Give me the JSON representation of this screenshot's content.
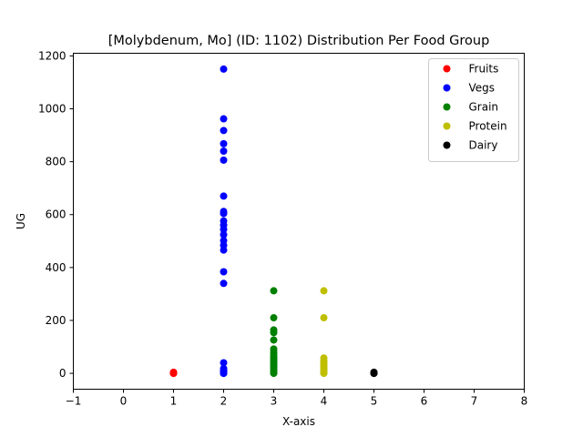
{
  "chart_data": {
    "type": "scatter",
    "title": "[Molybdenum, Mo] (ID: 1102) Distribution Per Food Group",
    "xlabel": "X-axis",
    "ylabel": "UG",
    "xlim": [
      -1,
      8
    ],
    "ylim": [
      -60,
      1210
    ],
    "xticks": [
      -1,
      0,
      1,
      2,
      3,
      4,
      5,
      6,
      7,
      8
    ],
    "yticks": [
      0,
      200,
      400,
      600,
      800,
      1000,
      1200
    ],
    "grid": false,
    "legend_position": "top-right",
    "series": [
      {
        "name": "Fruits",
        "color": "#ff0000",
        "x": [
          1,
          1,
          1,
          1,
          1,
          1
        ],
        "y": [
          0,
          0,
          1,
          2,
          3,
          4
        ]
      },
      {
        "name": "Vegs",
        "color": "#0000ff",
        "x": [
          2,
          2,
          2,
          2,
          2,
          2,
          2,
          2,
          2,
          2,
          2,
          2,
          2,
          2,
          2,
          2,
          2,
          2,
          2,
          2,
          2,
          2,
          2,
          2,
          2,
          2,
          2,
          2
        ],
        "y": [
          1150,
          962,
          918,
          868,
          840,
          806,
          670,
          612,
          604,
          576,
          560,
          544,
          524,
          502,
          484,
          466,
          384,
          340,
          40,
          18,
          12,
          8,
          5,
          3,
          2,
          1,
          0,
          0
        ]
      },
      {
        "name": "Grain",
        "color": "#008000",
        "x": [
          3,
          3,
          3,
          3,
          3,
          3,
          3,
          3,
          3,
          3,
          3,
          3,
          3,
          3,
          3,
          3,
          3,
          3,
          3,
          3,
          3
        ],
        "y": [
          312,
          210,
          164,
          154,
          126,
          92,
          82,
          74,
          64,
          58,
          52,
          46,
          40,
          34,
          28,
          22,
          16,
          10,
          5,
          2,
          0
        ]
      },
      {
        "name": "Protein",
        "color": "#bfbf00",
        "x": [
          4,
          4,
          4,
          4,
          4,
          4,
          4,
          4,
          4,
          4,
          4,
          4,
          4
        ],
        "y": [
          312,
          210,
          58,
          48,
          40,
          34,
          28,
          22,
          16,
          10,
          5,
          2,
          0
        ]
      },
      {
        "name": "Dairy",
        "color": "#000000",
        "x": [
          5,
          5,
          5,
          5,
          5,
          5
        ],
        "y": [
          0,
          0,
          1,
          2,
          3,
          4
        ]
      }
    ]
  }
}
